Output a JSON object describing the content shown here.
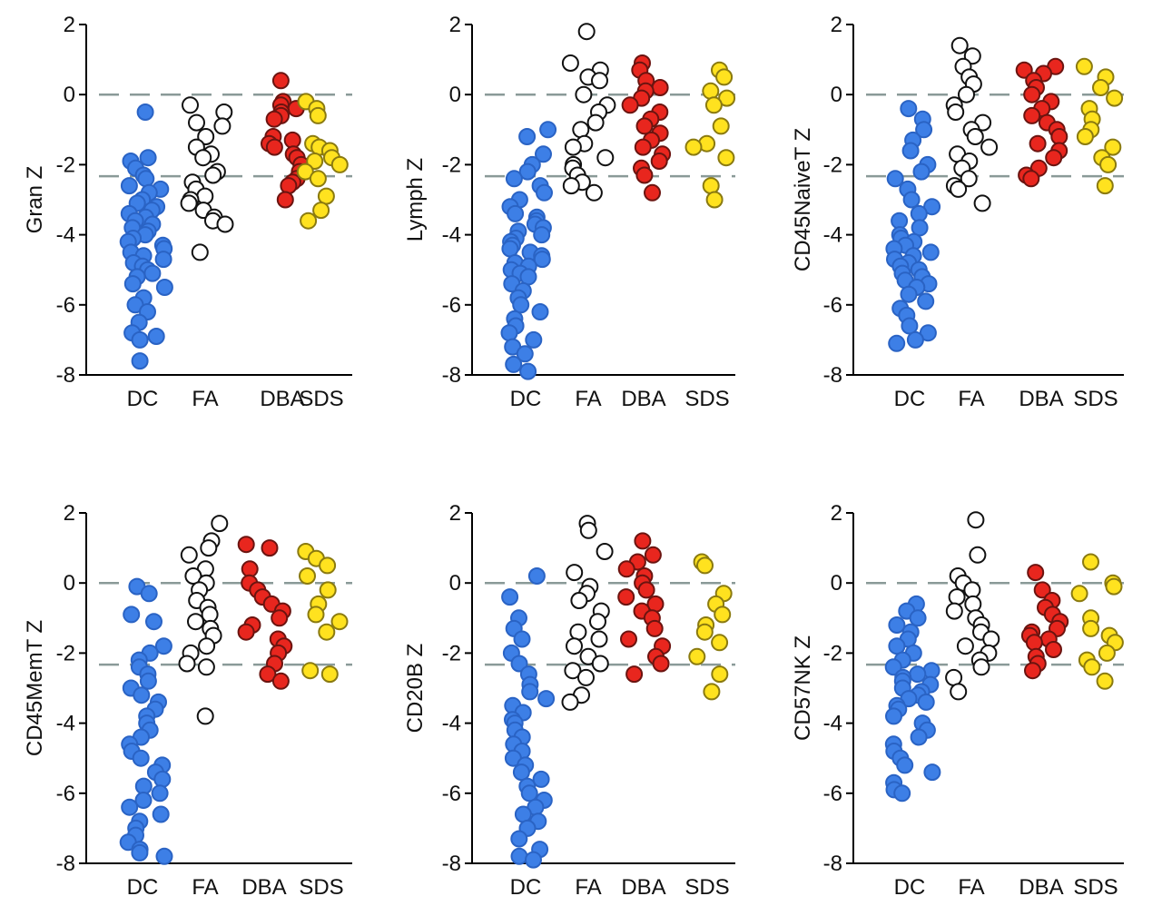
{
  "chart_data": [
    {
      "type": "scatter",
      "ylabel": "Gran Z",
      "categories": [
        "DC",
        "FA",
        "DBA",
        "SDS"
      ],
      "ylim": [
        -8,
        2
      ],
      "yticks": [
        2,
        0,
        -2,
        -4,
        -6,
        -8
      ],
      "ytick_labels": [
        "2",
        "0",
        "-2",
        "-4",
        "-6",
        "-8"
      ],
      "reference_lines": [
        0,
        -2.33
      ],
      "series": [
        {
          "name": "DC",
          "style": "filled",
          "color": "#3d7fe6",
          "stroke": "#2a63c4",
          "values": [
            -0.5,
            -1.8,
            -1.9,
            -2.1,
            -2.3,
            -2.4,
            -2.6,
            -2.7,
            -2.8,
            -3.0,
            -3.1,
            -3.2,
            -3.3,
            -3.4,
            -3.5,
            -3.6,
            -3.7,
            -3.8,
            -3.9,
            -4.0,
            -4.1,
            -4.2,
            -4.3,
            -4.4,
            -4.5,
            -4.6,
            -4.7,
            -4.8,
            -4.9,
            -5.0,
            -5.1,
            -5.2,
            -5.4,
            -5.5,
            -5.8,
            -6.0,
            -6.2,
            -6.5,
            -6.8,
            -6.9,
            -7.0,
            -7.6
          ]
        },
        {
          "name": "FA",
          "style": "open",
          "color": "#ffffff",
          "stroke": "#111111",
          "values": [
            -0.3,
            -0.5,
            -0.8,
            -0.9,
            -1.2,
            -1.5,
            -1.7,
            -1.8,
            -2.2,
            -2.3,
            -2.5,
            -2.7,
            -2.9,
            -3.0,
            -3.1,
            -3.3,
            -3.5,
            -3.6,
            -3.7,
            -4.5
          ]
        },
        {
          "name": "DBA",
          "style": "filled",
          "color": "#e8261e",
          "stroke": "#6b1410",
          "values": [
            0.4,
            -0.2,
            -0.3,
            -0.4,
            -0.5,
            -0.6,
            -0.7,
            -1.2,
            -1.3,
            -1.4,
            -1.5,
            -1.7,
            -1.8,
            -2.0,
            -2.2,
            -2.4,
            -2.5,
            -2.6,
            -3.0
          ]
        },
        {
          "name": "SDS",
          "style": "filled",
          "color": "#ffe21f",
          "stroke": "#8a7a10",
          "values": [
            -0.2,
            -0.4,
            -0.6,
            -1.4,
            -1.5,
            -1.6,
            -1.8,
            -1.9,
            -2.0,
            -2.2,
            -2.4,
            -2.9,
            -3.3,
            -3.6
          ]
        }
      ]
    },
    {
      "type": "scatter",
      "ylabel": "Lymph Z",
      "categories": [
        "DC",
        "FA",
        "DBA",
        "SDS"
      ],
      "ylim": [
        -8,
        2
      ],
      "yticks": [
        2,
        0,
        -2,
        -4,
        -6,
        -8
      ],
      "ytick_labels": [
        "2",
        "0",
        "-2",
        "-4",
        "-6",
        "-8"
      ],
      "reference_lines": [
        0,
        -2.33
      ],
      "series": [
        {
          "name": "DC",
          "style": "filled",
          "color": "#3d7fe6",
          "stroke": "#2a63c4",
          "values": [
            -1.0,
            -1.2,
            -1.7,
            -2.0,
            -2.2,
            -2.4,
            -2.6,
            -2.8,
            -3.0,
            -3.2,
            -3.4,
            -3.5,
            -3.6,
            -3.7,
            -3.8,
            -3.9,
            -4.0,
            -4.1,
            -4.2,
            -4.3,
            -4.4,
            -4.5,
            -4.6,
            -4.7,
            -4.8,
            -4.9,
            -5.0,
            -5.1,
            -5.2,
            -5.4,
            -5.6,
            -5.8,
            -6.0,
            -6.2,
            -6.4,
            -6.6,
            -6.8,
            -7.0,
            -7.2,
            -7.4,
            -7.7,
            -7.9
          ]
        },
        {
          "name": "FA",
          "style": "open",
          "color": "#ffffff",
          "stroke": "#111111",
          "values": [
            1.8,
            0.9,
            0.7,
            0.5,
            0.4,
            0.0,
            -0.3,
            -0.5,
            -0.8,
            -1.0,
            -1.4,
            -1.5,
            -1.8,
            -2.0,
            -2.1,
            -2.3,
            -2.5,
            -2.6,
            -2.8
          ]
        },
        {
          "name": "DBA",
          "style": "filled",
          "color": "#e8261e",
          "stroke": "#6b1410",
          "values": [
            0.9,
            0.7,
            0.4,
            0.2,
            0.1,
            -0.1,
            -0.3,
            -0.5,
            -0.7,
            -0.9,
            -1.1,
            -1.3,
            -1.5,
            -1.7,
            -1.9,
            -2.1,
            -2.3,
            -2.8
          ]
        },
        {
          "name": "SDS",
          "style": "filled",
          "color": "#ffe21f",
          "stroke": "#8a7a10",
          "values": [
            0.7,
            0.5,
            0.1,
            -0.1,
            -0.3,
            -0.9,
            -1.4,
            -1.5,
            -1.8,
            -2.6,
            -3.0
          ]
        }
      ]
    },
    {
      "type": "scatter",
      "ylabel": "CD45NaiveT Z",
      "categories": [
        "DC",
        "FA",
        "DBA",
        "SDS"
      ],
      "ylim": [
        -8,
        2
      ],
      "yticks": [
        2,
        0,
        -2,
        -4,
        -6,
        -8
      ],
      "ytick_labels": [
        "2",
        "0",
        "-2",
        "-4",
        "-6",
        "-8"
      ],
      "reference_lines": [
        0,
        -2.33
      ],
      "series": [
        {
          "name": "DC",
          "style": "filled",
          "color": "#3d7fe6",
          "stroke": "#2a63c4",
          "values": [
            -0.4,
            -0.7,
            -1.0,
            -1.3,
            -1.6,
            -2.0,
            -2.2,
            -2.4,
            -2.7,
            -3.0,
            -3.2,
            -3.4,
            -3.6,
            -3.8,
            -4.0,
            -4.1,
            -4.2,
            -4.3,
            -4.4,
            -4.5,
            -4.6,
            -4.7,
            -4.8,
            -4.9,
            -5.0,
            -5.1,
            -5.2,
            -5.3,
            -5.4,
            -5.5,
            -5.7,
            -5.9,
            -6.1,
            -6.3,
            -6.6,
            -6.8,
            -7.0,
            -7.1
          ]
        },
        {
          "name": "FA",
          "style": "open",
          "color": "#ffffff",
          "stroke": "#111111",
          "values": [
            1.4,
            1.1,
            0.8,
            0.5,
            0.3,
            0.0,
            -0.3,
            -0.5,
            -0.8,
            -1.0,
            -1.2,
            -1.5,
            -1.7,
            -1.9,
            -2.1,
            -2.4,
            -2.6,
            -2.7,
            -3.1
          ]
        },
        {
          "name": "DBA",
          "style": "filled",
          "color": "#e8261e",
          "stroke": "#6b1410",
          "values": [
            0.8,
            0.7,
            0.6,
            0.4,
            0.2,
            0.0,
            -0.2,
            -0.4,
            -0.6,
            -0.8,
            -1.0,
            -1.2,
            -1.4,
            -1.6,
            -1.8,
            -2.1,
            -2.3,
            -2.4
          ]
        },
        {
          "name": "SDS",
          "style": "filled",
          "color": "#ffe21f",
          "stroke": "#8a7a10",
          "values": [
            0.8,
            0.5,
            0.2,
            -0.1,
            -0.4,
            -0.7,
            -1.0,
            -1.2,
            -1.5,
            -1.8,
            -2.0,
            -2.6
          ]
        }
      ]
    },
    {
      "type": "scatter",
      "ylabel": "CD45MemT Z",
      "categories": [
        "DC",
        "FA",
        "DBA",
        "SDS"
      ],
      "ylim": [
        -8,
        2
      ],
      "yticks": [
        2,
        0,
        -2,
        -4,
        -6,
        -8
      ],
      "ytick_labels": [
        "2",
        "0",
        "-2",
        "-4",
        "-6",
        "-8"
      ],
      "reference_lines": [
        0,
        -2.33
      ],
      "series": [
        {
          "name": "DC",
          "style": "filled",
          "color": "#3d7fe6",
          "stroke": "#2a63c4",
          "values": [
            -0.1,
            -0.3,
            -0.9,
            -1.1,
            -1.8,
            -2.0,
            -2.2,
            -2.4,
            -2.6,
            -2.8,
            -3.0,
            -3.2,
            -3.4,
            -3.6,
            -3.8,
            -4.0,
            -4.2,
            -4.4,
            -4.6,
            -4.8,
            -5.0,
            -5.2,
            -5.4,
            -5.6,
            -5.8,
            -6.0,
            -6.2,
            -6.4,
            -6.6,
            -6.8,
            -7.0,
            -7.2,
            -7.4,
            -7.6,
            -7.7,
            -7.8
          ]
        },
        {
          "name": "FA",
          "style": "open",
          "color": "#ffffff",
          "stroke": "#111111",
          "values": [
            1.7,
            1.2,
            1.0,
            0.8,
            0.4,
            0.2,
            0.0,
            -0.2,
            -0.5,
            -0.7,
            -0.9,
            -1.1,
            -1.3,
            -1.5,
            -1.8,
            -2.0,
            -2.3,
            -2.4,
            -3.8
          ]
        },
        {
          "name": "DBA",
          "style": "filled",
          "color": "#e8261e",
          "stroke": "#6b1410",
          "values": [
            1.1,
            1.0,
            0.4,
            0.0,
            -0.2,
            -0.4,
            -0.6,
            -0.8,
            -1.0,
            -1.2,
            -1.4,
            -1.6,
            -1.8,
            -2.0,
            -2.3,
            -2.6,
            -2.8
          ]
        },
        {
          "name": "SDS",
          "style": "filled",
          "color": "#ffe21f",
          "stroke": "#8a7a10",
          "values": [
            0.9,
            0.7,
            0.5,
            0.2,
            -0.2,
            -0.6,
            -0.9,
            -1.1,
            -1.4,
            -2.5,
            -2.6
          ]
        }
      ]
    },
    {
      "type": "scatter",
      "ylabel": "CD20B Z",
      "categories": [
        "DC",
        "FA",
        "DBA",
        "SDS"
      ],
      "ylim": [
        -8,
        2
      ],
      "yticks": [
        2,
        0,
        -2,
        -4,
        -6,
        -8
      ],
      "ytick_labels": [
        "2",
        "0",
        "-2",
        "-4",
        "-6",
        "-8"
      ],
      "reference_lines": [
        0,
        -2.33
      ],
      "series": [
        {
          "name": "DC",
          "style": "filled",
          "color": "#3d7fe6",
          "stroke": "#2a63c4",
          "values": [
            0.2,
            -0.4,
            -1.0,
            -1.3,
            -1.6,
            -2.0,
            -2.3,
            -2.6,
            -2.9,
            -3.1,
            -3.3,
            -3.5,
            -3.7,
            -3.9,
            -4.0,
            -4.2,
            -4.4,
            -4.6,
            -4.8,
            -5.0,
            -5.2,
            -5.4,
            -5.6,
            -5.8,
            -6.0,
            -6.2,
            -6.4,
            -6.6,
            -6.8,
            -7.0,
            -7.3,
            -7.6,
            -7.8,
            -7.9
          ]
        },
        {
          "name": "FA",
          "style": "open",
          "color": "#ffffff",
          "stroke": "#111111",
          "values": [
            1.7,
            1.5,
            0.9,
            0.3,
            -0.1,
            -0.3,
            -0.5,
            -0.8,
            -1.1,
            -1.4,
            -1.6,
            -1.8,
            -2.1,
            -2.3,
            -2.5,
            -2.7,
            -3.2,
            -3.4
          ]
        },
        {
          "name": "DBA",
          "style": "filled",
          "color": "#e8261e",
          "stroke": "#6b1410",
          "values": [
            1.2,
            0.8,
            0.6,
            0.4,
            0.2,
            0.0,
            -0.2,
            -0.4,
            -0.6,
            -0.8,
            -1.0,
            -1.3,
            -1.6,
            -1.8,
            -2.1,
            -2.3,
            -2.6
          ]
        },
        {
          "name": "SDS",
          "style": "filled",
          "color": "#ffe21f",
          "stroke": "#8a7a10",
          "values": [
            0.6,
            0.5,
            -0.3,
            -0.6,
            -0.9,
            -1.2,
            -1.4,
            -1.7,
            -2.1,
            -2.6,
            -3.1
          ]
        }
      ]
    },
    {
      "type": "scatter",
      "ylabel": "CD57NK Z",
      "categories": [
        "DC",
        "FA",
        "DBA",
        "SDS"
      ],
      "ylim": [
        -8,
        2
      ],
      "yticks": [
        2,
        0,
        -2,
        -4,
        -6,
        -8
      ],
      "ytick_labels": [
        "2",
        "0",
        "-2",
        "-4",
        "-6",
        "-8"
      ],
      "reference_lines": [
        0,
        -2.33
      ],
      "series": [
        {
          "name": "DC",
          "style": "filled",
          "color": "#3d7fe6",
          "stroke": "#2a63c4",
          "values": [
            -0.6,
            -0.8,
            -1.0,
            -1.2,
            -1.4,
            -1.6,
            -1.8,
            -2.0,
            -2.2,
            -2.4,
            -2.5,
            -2.6,
            -2.7,
            -2.8,
            -2.9,
            -3.0,
            -3.1,
            -3.2,
            -3.3,
            -3.4,
            -3.5,
            -3.6,
            -3.8,
            -4.0,
            -4.2,
            -4.4,
            -4.6,
            -4.8,
            -5.0,
            -5.2,
            -5.4,
            -5.7,
            -5.9,
            -6.0
          ]
        },
        {
          "name": "FA",
          "style": "open",
          "color": "#ffffff",
          "stroke": "#111111",
          "values": [
            1.8,
            0.8,
            0.2,
            0.0,
            -0.2,
            -0.4,
            -0.6,
            -0.8,
            -1.0,
            -1.2,
            -1.4,
            -1.6,
            -1.8,
            -2.0,
            -2.2,
            -2.4,
            -2.7,
            -3.1
          ]
        },
        {
          "name": "DBA",
          "style": "filled",
          "color": "#e8261e",
          "stroke": "#6b1410",
          "values": [
            0.3,
            -0.2,
            -0.5,
            -0.7,
            -0.9,
            -1.1,
            -1.3,
            -1.4,
            -1.5,
            -1.6,
            -1.7,
            -1.9,
            -2.1,
            -2.3,
            -2.5
          ]
        },
        {
          "name": "SDS",
          "style": "filled",
          "color": "#ffe21f",
          "stroke": "#8a7a10",
          "values": [
            0.6,
            0.0,
            -0.1,
            -0.3,
            -1.0,
            -1.3,
            -1.5,
            -1.7,
            -2.0,
            -2.2,
            -2.4,
            -2.8
          ]
        }
      ]
    }
  ]
}
